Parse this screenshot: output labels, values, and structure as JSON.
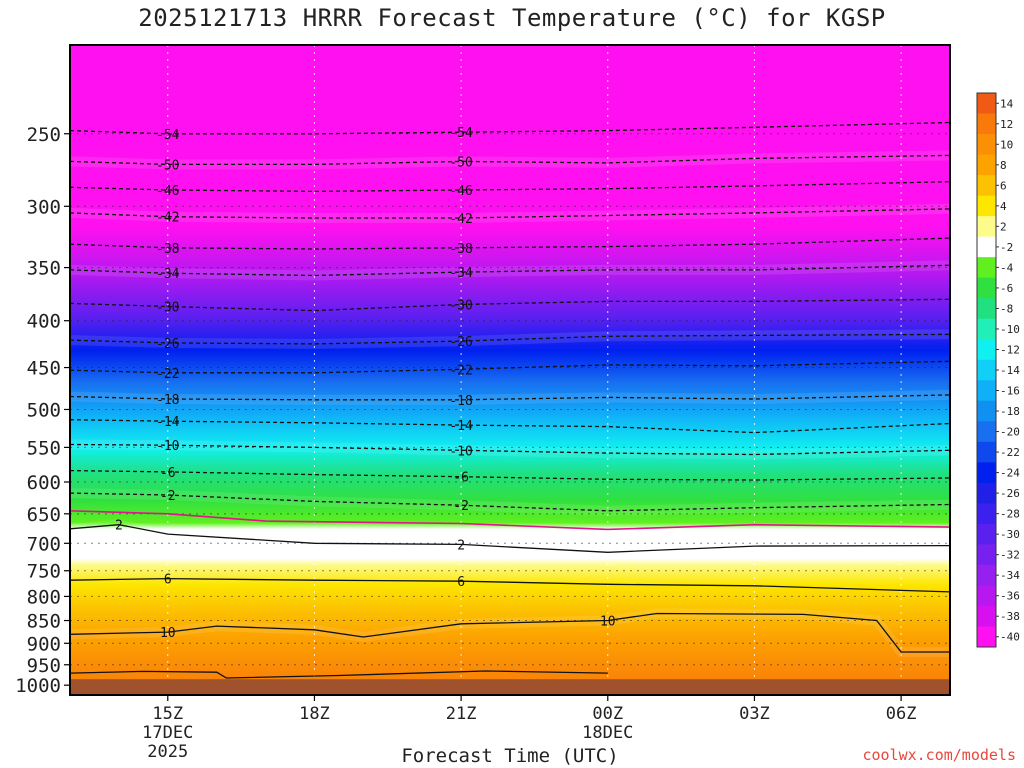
{
  "title": "2025121713 HRRR Forecast Temperature (°C) for KGSP",
  "credit": "coolwx.com/models",
  "chart_data": {
    "type": "contour",
    "title": "2025121713 HRRR Forecast Temperature (°C) for KGSP",
    "xlabel": "Forecast Time (UTC)",
    "ylabel": "",
    "x_range_hours": [
      13,
      31
    ],
    "x_ticks": [
      {
        "hour": 15,
        "lines": [
          "15Z",
          "17DEC",
          "2025"
        ]
      },
      {
        "hour": 18,
        "lines": [
          "18Z"
        ]
      },
      {
        "hour": 21,
        "lines": [
          "21Z"
        ]
      },
      {
        "hour": 24,
        "lines": [
          "00Z",
          "18DEC"
        ]
      },
      {
        "hour": 27,
        "lines": [
          "03Z"
        ]
      },
      {
        "hour": 30,
        "lines": [
          "06Z"
        ]
      }
    ],
    "y_axis": "pressure (log)",
    "y_range": [
      1025,
      200
    ],
    "y_ticks": [
      250,
      300,
      350,
      400,
      450,
      500,
      550,
      600,
      650,
      700,
      750,
      800,
      850,
      900,
      950,
      1000
    ],
    "surface_pressure_hpa": 985,
    "grid": true,
    "colorbar": {
      "placement": "right",
      "labels": [
        "14",
        "12",
        "10",
        "8",
        "6",
        "4",
        "2",
        "-2",
        "-4",
        "-6",
        "-8",
        "-10",
        "-12",
        "-14",
        "-16",
        "-18",
        "-20",
        "-22",
        "-24",
        "-26",
        "-28",
        "-30",
        "-32",
        "-34",
        "-36",
        "-38",
        "-40"
      ],
      "colors": [
        "#f05a14",
        "#f87a0a",
        "#fb8f06",
        "#fca300",
        "#fcc100",
        "#fde600",
        "#fdfb8a",
        "#ffffff",
        "#60f020",
        "#30e040",
        "#20e080",
        "#20f0b8",
        "#10f0f0",
        "#10d0f8",
        "#10b0f8",
        "#1090f0",
        "#1870f0",
        "#1048f0",
        "#0020f0",
        "#2020e8",
        "#3c20f0",
        "#5a20f0",
        "#7820f0",
        "#9620f0",
        "#b818f0",
        "#d810f0",
        "#ff10f0"
      ]
    },
    "series": [
      {
        "level": -54,
        "label": "-54",
        "points": [
          [
            13,
            248
          ],
          [
            15,
            250
          ],
          [
            18,
            250
          ],
          [
            21,
            249
          ],
          [
            24,
            248
          ],
          [
            27,
            246
          ],
          [
            31,
            243
          ]
        ]
      },
      {
        "level": -50,
        "label": "-50",
        "points": [
          [
            13,
            268
          ],
          [
            15,
            270
          ],
          [
            18,
            270
          ],
          [
            21,
            268
          ],
          [
            24,
            269
          ],
          [
            27,
            266
          ],
          [
            31,
            264
          ]
        ]
      },
      {
        "level": -46,
        "label": "-46",
        "points": [
          [
            13,
            286
          ],
          [
            15,
            288
          ],
          [
            18,
            289
          ],
          [
            21,
            288
          ],
          [
            24,
            287
          ],
          [
            27,
            285
          ],
          [
            31,
            282
          ]
        ]
      },
      {
        "level": -42,
        "label": "-42",
        "points": [
          [
            13,
            305
          ],
          [
            15,
            308
          ],
          [
            18,
            309
          ],
          [
            21,
            309
          ],
          [
            24,
            307
          ],
          [
            27,
            305
          ],
          [
            31,
            302
          ]
        ]
      },
      {
        "level": -38,
        "label": "-38",
        "points": [
          [
            13,
            330
          ],
          [
            15,
            333
          ],
          [
            18,
            334
          ],
          [
            21,
            333
          ],
          [
            24,
            332
          ],
          [
            27,
            330
          ],
          [
            31,
            325
          ]
        ]
      },
      {
        "level": -34,
        "label": "-34",
        "points": [
          [
            13,
            352
          ],
          [
            15,
            355
          ],
          [
            18,
            357
          ],
          [
            21,
            354
          ],
          [
            24,
            352
          ],
          [
            27,
            352
          ],
          [
            31,
            348
          ]
        ]
      },
      {
        "level": -30,
        "label": "-30",
        "points": [
          [
            13,
            383
          ],
          [
            15,
            386
          ],
          [
            18,
            390
          ],
          [
            21,
            384
          ],
          [
            24,
            381
          ],
          [
            27,
            381
          ],
          [
            31,
            379
          ]
        ]
      },
      {
        "level": -26,
        "label": "-26",
        "points": [
          [
            13,
            420
          ],
          [
            15,
            423
          ],
          [
            18,
            424
          ],
          [
            21,
            421
          ],
          [
            24,
            416
          ],
          [
            27,
            415
          ],
          [
            31,
            414
          ]
        ]
      },
      {
        "level": -22,
        "label": "-22",
        "points": [
          [
            13,
            453
          ],
          [
            15,
            456
          ],
          [
            18,
            456
          ],
          [
            21,
            452
          ],
          [
            24,
            447
          ],
          [
            27,
            448
          ],
          [
            31,
            443
          ]
        ]
      },
      {
        "level": -18,
        "label": "-18",
        "points": [
          [
            13,
            484
          ],
          [
            15,
            487
          ],
          [
            18,
            488
          ],
          [
            21,
            488
          ],
          [
            24,
            485
          ],
          [
            27,
            487
          ],
          [
            31,
            482
          ]
        ]
      },
      {
        "level": -14,
        "label": "-14",
        "points": [
          [
            13,
            513
          ],
          [
            15,
            515
          ],
          [
            18,
            517
          ],
          [
            21,
            520
          ],
          [
            24,
            522
          ],
          [
            27,
            530
          ],
          [
            31,
            518
          ]
        ]
      },
      {
        "level": -10,
        "label": "-10",
        "points": [
          [
            13,
            546
          ],
          [
            15,
            547
          ],
          [
            18,
            550
          ],
          [
            21,
            554
          ],
          [
            24,
            558
          ],
          [
            27,
            560
          ],
          [
            31,
            554
          ]
        ]
      },
      {
        "level": -6,
        "label": "-6",
        "points": [
          [
            13,
            583
          ],
          [
            15,
            585
          ],
          [
            18,
            589
          ],
          [
            21,
            592
          ],
          [
            24,
            596
          ],
          [
            27,
            597
          ],
          [
            31,
            594
          ]
        ]
      },
      {
        "level": -2,
        "label": "-2",
        "points": [
          [
            13,
            617
          ],
          [
            15,
            620
          ],
          [
            18,
            630
          ],
          [
            21,
            636
          ],
          [
            24,
            645
          ],
          [
            27,
            640
          ],
          [
            31,
            635
          ]
        ]
      },
      {
        "level": 0,
        "label": "",
        "points": [
          [
            13,
            645
          ],
          [
            15,
            650
          ],
          [
            17,
            662
          ],
          [
            21,
            666
          ],
          [
            24,
            676
          ],
          [
            27,
            668
          ],
          [
            31,
            672
          ]
        ]
      },
      {
        "level": 2,
        "label": "2",
        "points": [
          [
            13,
            675
          ],
          [
            14,
            668
          ],
          [
            15,
            684
          ],
          [
            18,
            700
          ],
          [
            21,
            702
          ],
          [
            24,
            716
          ],
          [
            27,
            705
          ],
          [
            31,
            704
          ]
        ]
      },
      {
        "level": 6,
        "label": "6",
        "points": [
          [
            13,
            768
          ],
          [
            15,
            765
          ],
          [
            18,
            768
          ],
          [
            21,
            770
          ],
          [
            24,
            776
          ],
          [
            27,
            779
          ],
          [
            31,
            791
          ]
        ]
      },
      {
        "level": 10,
        "label": "10",
        "points": [
          [
            13,
            880
          ],
          [
            15,
            875
          ],
          [
            16,
            862
          ],
          [
            18,
            870
          ],
          [
            19,
            886
          ],
          [
            21,
            857
          ],
          [
            24,
            850
          ],
          [
            25,
            835
          ],
          [
            28,
            837
          ],
          [
            29.5,
            850
          ],
          [
            30,
            920
          ],
          [
            31,
            920
          ]
        ]
      },
      {
        "level": 14,
        "label": "",
        "points": [
          [
            13,
            970
          ],
          [
            14.5,
            966
          ],
          [
            16,
            968
          ],
          [
            16.2,
            982
          ],
          [
            18.5,
            976
          ],
          [
            21.5,
            965
          ],
          [
            24,
            970
          ]
        ]
      }
    ]
  }
}
